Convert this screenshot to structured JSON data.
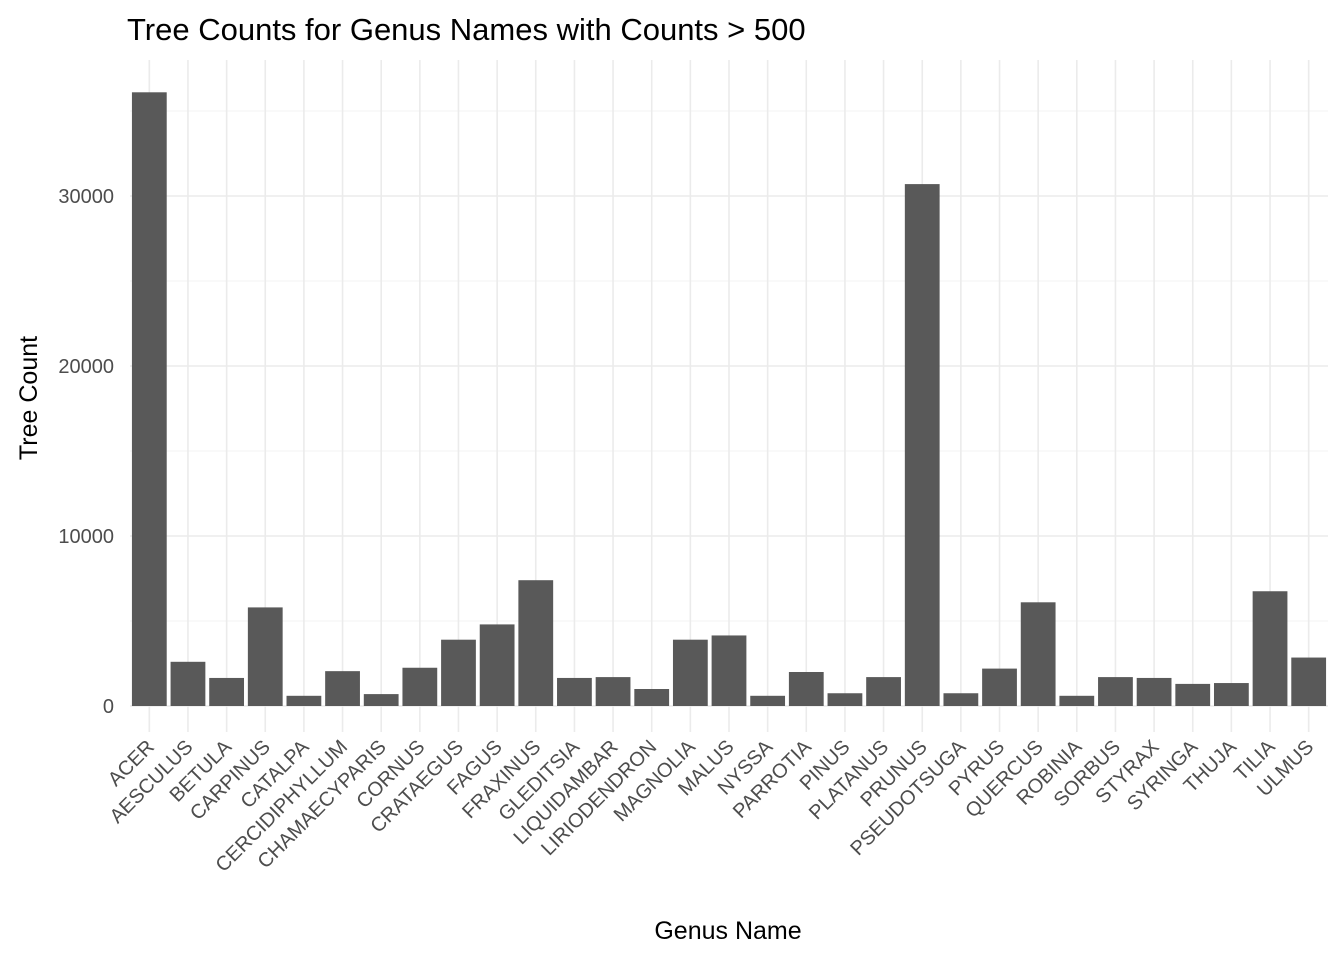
{
  "chart_data": {
    "type": "bar",
    "title": "Tree Counts for Genus Names with Counts > 500",
    "xlabel": "Genus Name",
    "ylabel": "Tree Count",
    "ylim": [
      0,
      37000
    ],
    "yticks": [
      0,
      10000,
      20000,
      30000
    ],
    "ytick_labels": [
      "0",
      "10000",
      "20000",
      "30000"
    ],
    "grid": true,
    "legend": "none",
    "bar_color": "#595959",
    "categories": [
      "ACER",
      "AESCULUS",
      "BETULA",
      "CARPINUS",
      "CATALPA",
      "CERCIDIPHYLLUM",
      "CHAMAECYPARIS",
      "CORNUS",
      "CRATAEGUS",
      "FAGUS",
      "FRAXINUS",
      "GLEDITSIA",
      "LIQUIDAMBAR",
      "LIRIODENDRON",
      "MAGNOLIA",
      "MALUS",
      "NYSSA",
      "PARROTIA",
      "PINUS",
      "PLATANUS",
      "PRUNUS",
      "PSEUDOTSUGA",
      "PYRUS",
      "QUERCUS",
      "ROBINIA",
      "SORBUS",
      "STYRAX",
      "SYRINGA",
      "THUJA",
      "TILIA",
      "ULMUS"
    ],
    "values": [
      36100,
      2600,
      1650,
      5800,
      600,
      2050,
      700,
      2250,
      3900,
      4800,
      7400,
      1650,
      1700,
      1000,
      3900,
      4150,
      600,
      2000,
      750,
      1700,
      30700,
      750,
      2200,
      6100,
      600,
      1700,
      1650,
      1300,
      1350,
      6750,
      2850
    ]
  }
}
